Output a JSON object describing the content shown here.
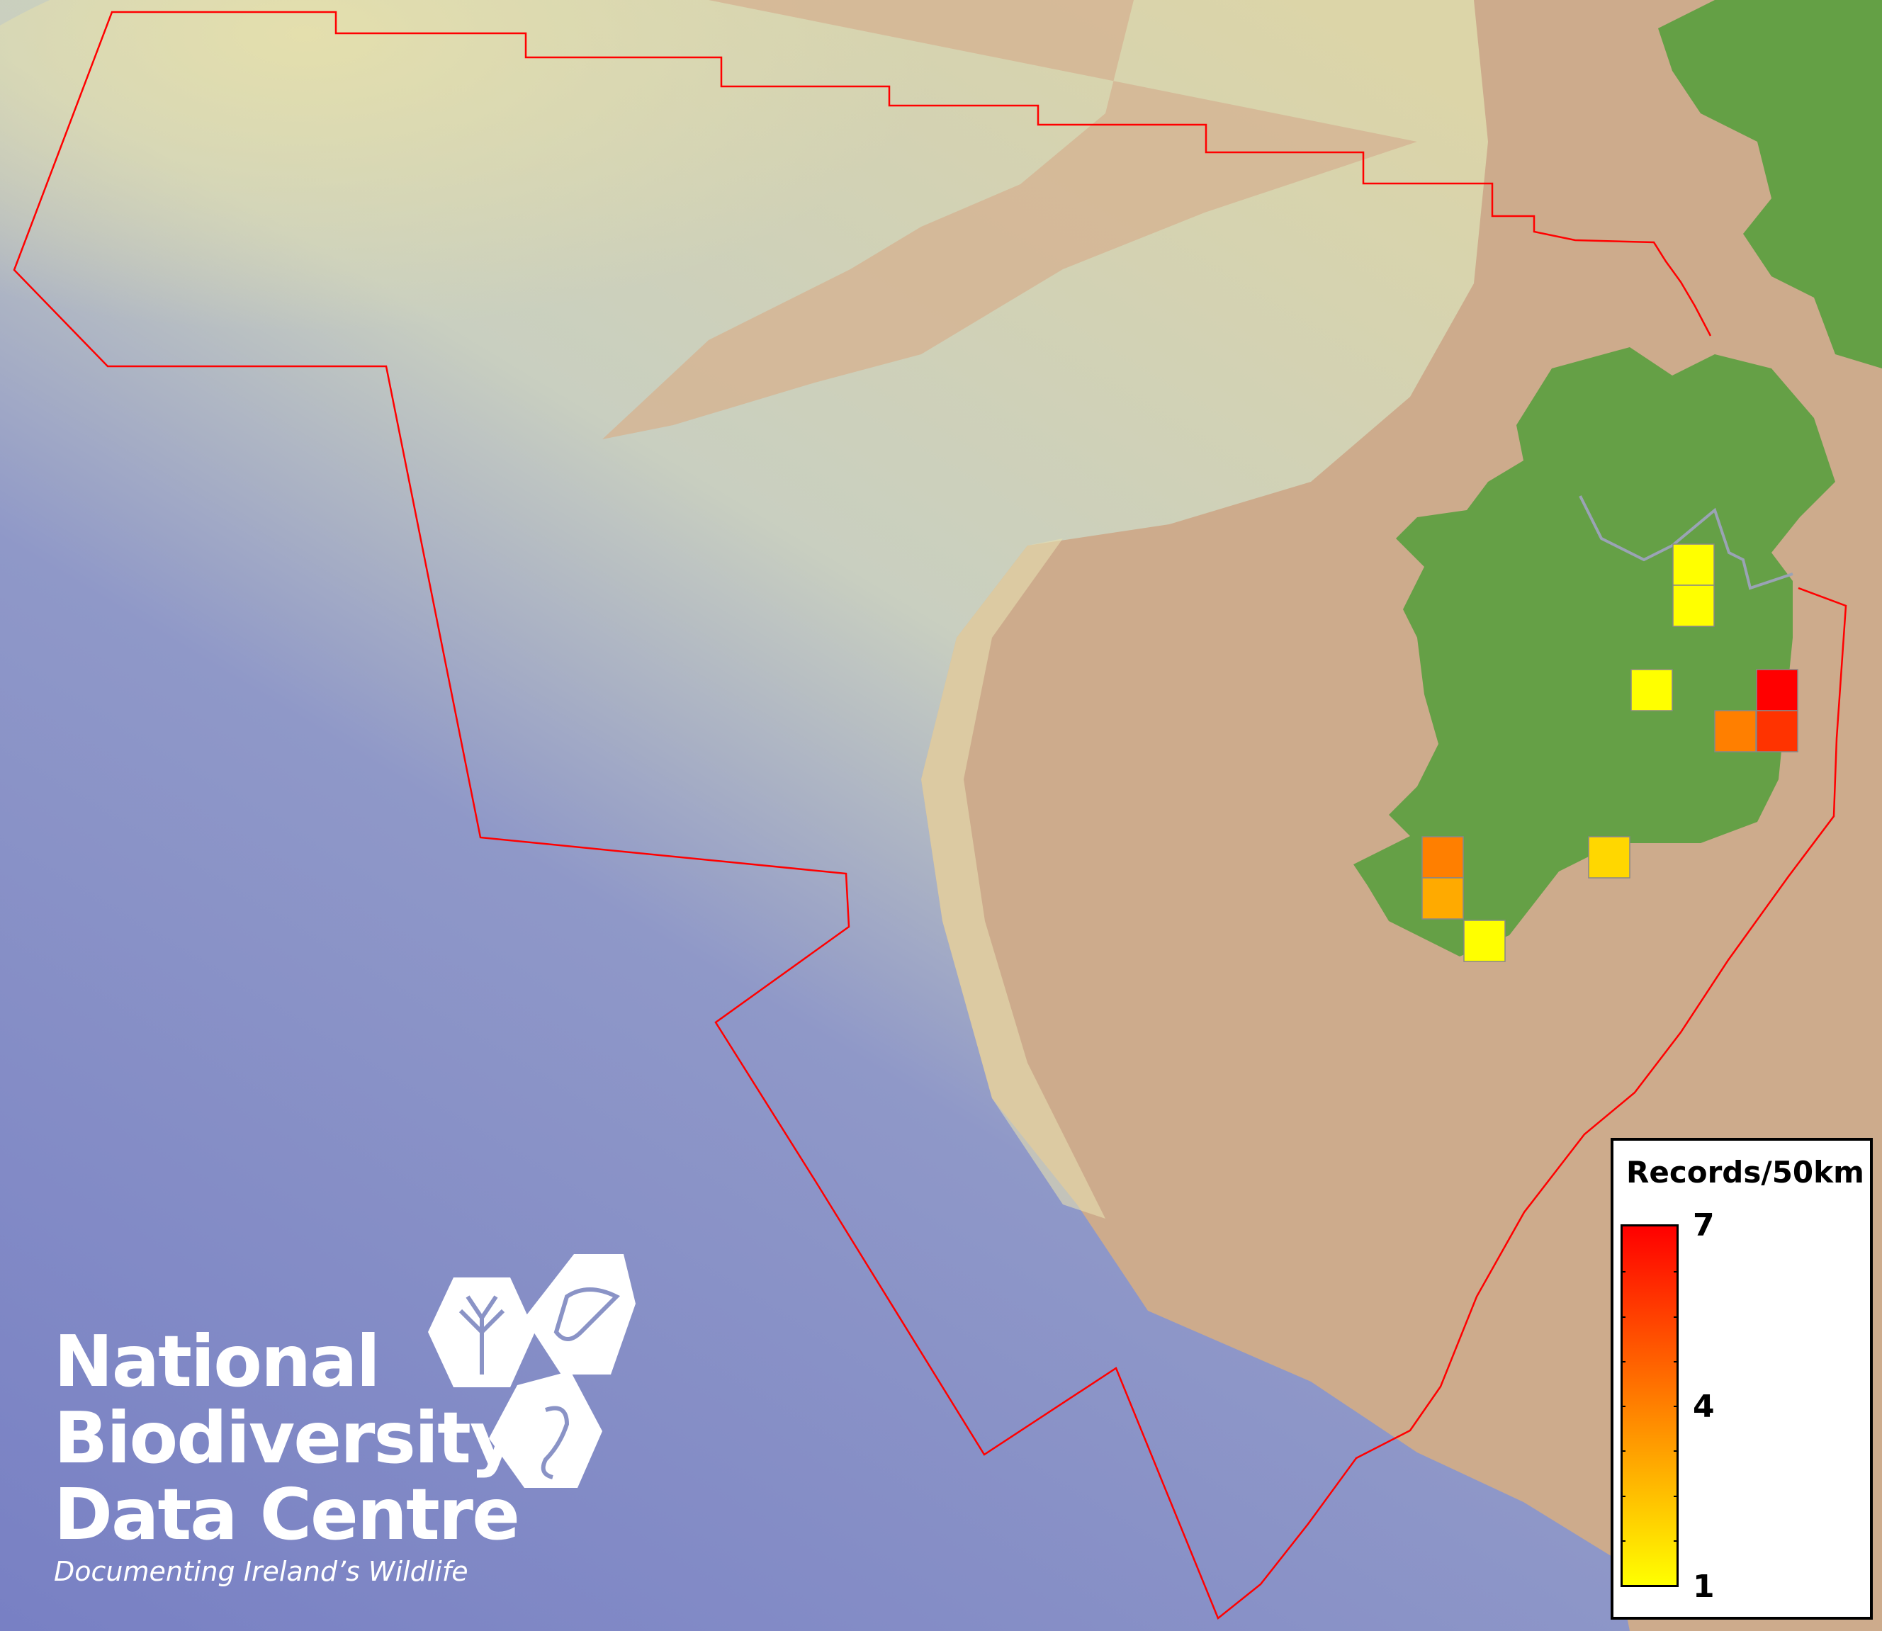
{
  "map": {
    "colors": {
      "deep_sea": "#7d86c6",
      "shelf": "#d9dcb4",
      "land_background": "#cdab8c",
      "ireland_land": "#65a046",
      "boundary": "#ff0000"
    },
    "grid_cells": [
      {
        "cell": "north-1",
        "value": 1,
        "color": "#ffff00"
      },
      {
        "cell": "north-2",
        "value": 1,
        "color": "#ffff00"
      },
      {
        "cell": "midlands",
        "value": 1,
        "color": "#ffff00"
      },
      {
        "cell": "east-1",
        "value": 7,
        "color": "#ff0000"
      },
      {
        "cell": "east-2",
        "value": 4,
        "color": "#ff7f00"
      },
      {
        "cell": "east-3",
        "value": 6,
        "color": "#ff3300"
      },
      {
        "cell": "southwest-1",
        "value": 4,
        "color": "#ff7f00"
      },
      {
        "cell": "southwest-2",
        "value": 3,
        "color": "#ffaa00"
      },
      {
        "cell": "southwest-3",
        "value": 1,
        "color": "#ffff00"
      },
      {
        "cell": "south",
        "value": 2,
        "color": "#ffd700"
      }
    ]
  },
  "logo": {
    "line1": "National",
    "line2": "Biodiversity",
    "line3": "Data Centre",
    "tagline": "Documenting Ireland’s Wildlife"
  },
  "legend": {
    "title": "Records/50km",
    "max_label": "7",
    "mid_label": "4",
    "min_label": "1",
    "min_color": "#ffff00",
    "mid_color": "#ff8000",
    "max_color": "#ff0000"
  }
}
